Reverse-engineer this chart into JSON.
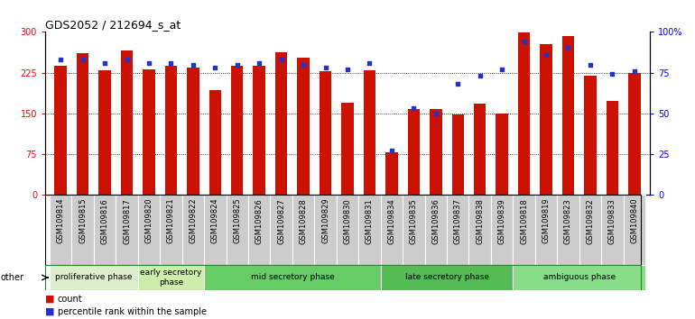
{
  "title": "GDS2052 / 212694_s_at",
  "samples": [
    "GSM109814",
    "GSM109815",
    "GSM109816",
    "GSM109817",
    "GSM109820",
    "GSM109821",
    "GSM109822",
    "GSM109824",
    "GSM109825",
    "GSM109826",
    "GSM109827",
    "GSM109828",
    "GSM109829",
    "GSM109830",
    "GSM109831",
    "GSM109834",
    "GSM109835",
    "GSM109836",
    "GSM109837",
    "GSM109838",
    "GSM109839",
    "GSM109818",
    "GSM109819",
    "GSM109823",
    "GSM109832",
    "GSM109833",
    "GSM109840"
  ],
  "counts": [
    238,
    260,
    229,
    265,
    231,
    237,
    235,
    193,
    237,
    237,
    262,
    253,
    228,
    170,
    230,
    78,
    157,
    157,
    147,
    168,
    150,
    299,
    278,
    292,
    220,
    173,
    225
  ],
  "percentiles": [
    83,
    83,
    81,
    83,
    81,
    81,
    80,
    78,
    80,
    81,
    83,
    80,
    78,
    77,
    81,
    27,
    53,
    50,
    68,
    73,
    77,
    94,
    86,
    90,
    80,
    74,
    76
  ],
  "phases": [
    {
      "label": "proliferative phase",
      "start": 0,
      "end": 4,
      "color": "#ddeecc"
    },
    {
      "label": "early secretory\nphase",
      "start": 4,
      "end": 7,
      "color": "#cceeaa"
    },
    {
      "label": "mid secretory phase",
      "start": 7,
      "end": 15,
      "color": "#66cc66"
    },
    {
      "label": "late secretory phase",
      "start": 15,
      "end": 21,
      "color": "#55bb55"
    },
    {
      "label": "ambiguous phase",
      "start": 21,
      "end": 27,
      "color": "#88dd88"
    }
  ],
  "bar_color": "#cc1100",
  "dot_color": "#2233cc",
  "left_ylim": [
    0,
    300
  ],
  "right_ylim": [
    0,
    100
  ],
  "left_yticks": [
    0,
    75,
    150,
    225,
    300
  ],
  "right_yticks": [
    0,
    25,
    50,
    75,
    100
  ],
  "right_yticklabels": [
    "0",
    "25",
    "50",
    "75",
    "100%"
  ],
  "title_fontsize": 9,
  "tick_fontsize": 6,
  "bar_width": 0.55,
  "xtick_gray": "#cccccc",
  "phase_border_color": "#228822"
}
